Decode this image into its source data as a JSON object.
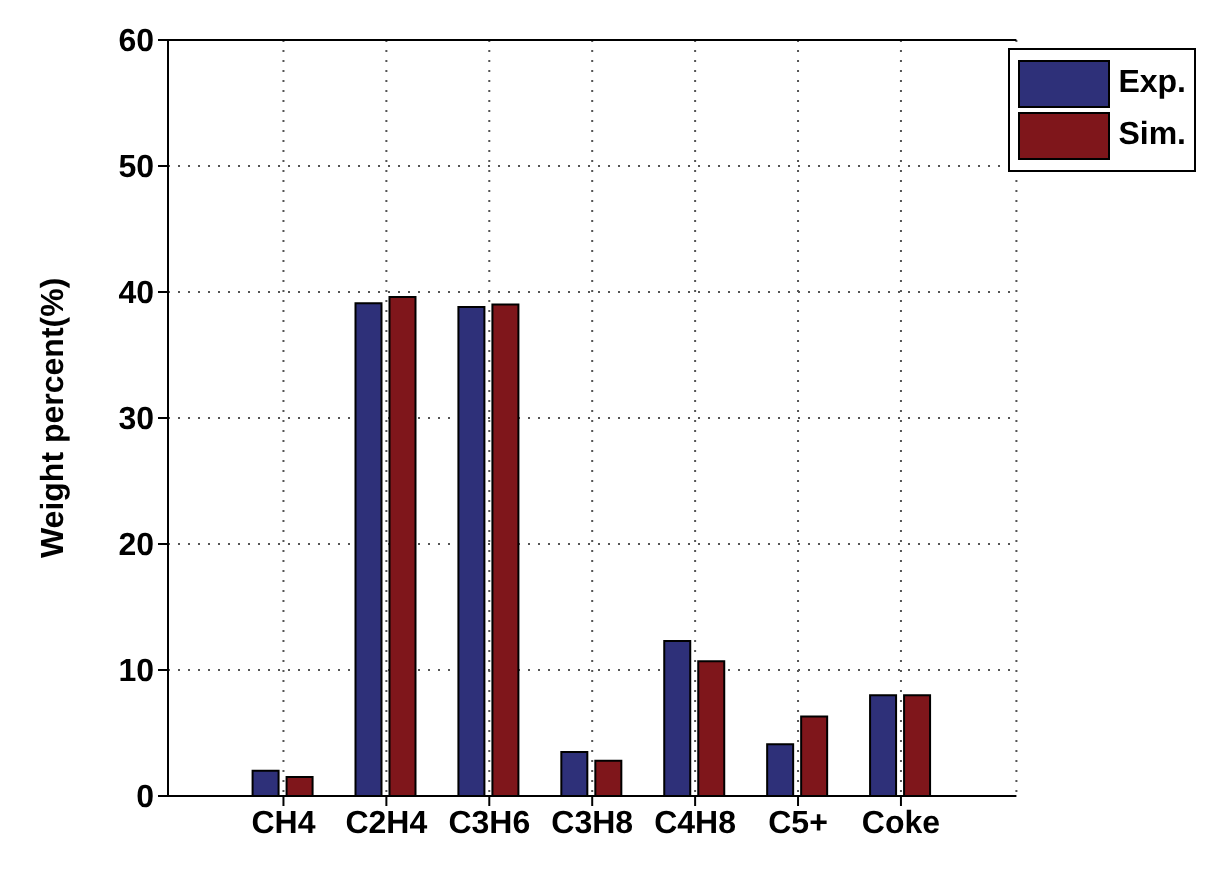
{
  "chart_data": {
    "type": "bar",
    "ylabel": "Weight percent(%)",
    "categories": [
      "CH4",
      "C2H4",
      "C3H6",
      "C3H8",
      "C4H8",
      "C5+",
      "Coke"
    ],
    "series": [
      {
        "name": "Exp.",
        "color": "#2e3079",
        "values": [
          2.0,
          39.1,
          38.8,
          3.5,
          12.3,
          4.1,
          8.0
        ]
      },
      {
        "name": "Sim.",
        "color": "#7f161b",
        "values": [
          1.5,
          39.6,
          39.0,
          2.8,
          10.7,
          6.3,
          8.0
        ]
      }
    ],
    "ylim": [
      0,
      60
    ],
    "yticks": [
      0,
      10,
      20,
      30,
      40,
      50,
      60
    ],
    "grid": true,
    "legend": "top right"
  }
}
